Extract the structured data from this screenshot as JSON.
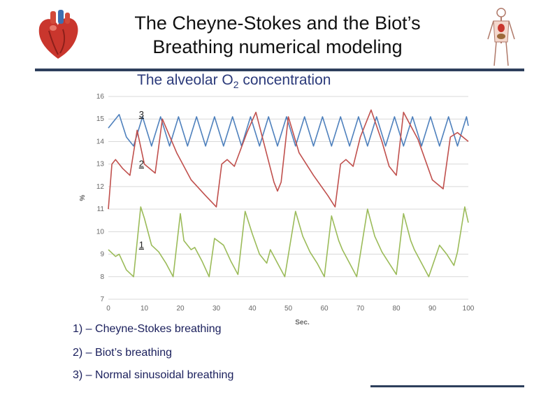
{
  "slide": {
    "title_line1": "The Cheyne-Stokes and the Biot’s",
    "title_line2": "Breathing numerical modeling",
    "subtitle_main": "The alveolar O",
    "subtitle_sub": "2",
    "subtitle_tail": " concentration"
  },
  "legend": [
    "1) – Cheyne-Stokes breathing",
    "2) – Biot’s breathing",
    "3) – Normal sinusoidal breathing"
  ],
  "icons": [
    "heart-icon",
    "human-anatomy-icon"
  ],
  "colors": {
    "rule": "#2e3f5c",
    "series_3": "#4f81bd",
    "series_2": "#c0504d",
    "series_1": "#9bbb59"
  },
  "chart_data": {
    "type": "line",
    "xlabel": "Sec.",
    "ylabel": "%",
    "xlim": [
      0,
      100
    ],
    "ylim": [
      7,
      16
    ],
    "x_ticks": [
      0,
      10,
      20,
      30,
      40,
      50,
      60,
      70,
      80,
      90,
      100
    ],
    "y_ticks": [
      7,
      8,
      9,
      10,
      11,
      12,
      13,
      14,
      15,
      16
    ],
    "grid": "horizontal",
    "series": [
      {
        "name": "3",
        "color": "#4f81bd",
        "x": [
          0,
          3,
          5,
          7,
          9.5,
          12,
          14.5,
          17,
          19.5,
          22,
          24.5,
          27,
          29.5,
          32,
          34.5,
          37,
          39.5,
          42,
          44.5,
          47,
          49.5,
          52,
          54.5,
          57,
          59.5,
          62,
          64.5,
          67,
          69.5,
          72,
          74.5,
          77,
          79.5,
          82,
          84.5,
          87,
          89.5,
          92,
          94.5,
          97,
          99.5,
          100
        ],
        "y": [
          14.6,
          15.2,
          14.2,
          13.8,
          15.1,
          13.8,
          15.1,
          13.8,
          15.1,
          13.8,
          15.1,
          13.8,
          15.1,
          13.8,
          15.1,
          13.8,
          15.1,
          13.8,
          15.1,
          13.8,
          15.1,
          13.8,
          15.1,
          13.8,
          15.1,
          13.8,
          15.1,
          13.8,
          15.1,
          13.8,
          15.1,
          13.8,
          15.1,
          13.8,
          15.1,
          13.8,
          15.1,
          13.8,
          15.1,
          13.8,
          15.1,
          14.7
        ]
      },
      {
        "name": "2",
        "color": "#c0504d",
        "x": [
          0,
          1,
          2,
          4,
          6,
          8,
          10,
          13,
          15,
          19,
          23,
          27,
          30,
          31.5,
          33,
          35,
          38.5,
          41,
          46,
          47,
          48,
          50,
          53,
          57,
          61,
          63,
          64.5,
          66,
          68,
          70,
          73,
          76,
          78,
          80,
          82,
          86,
          90,
          93,
          95,
          97,
          100
        ],
        "y": [
          11.0,
          13.0,
          13.2,
          12.8,
          12.5,
          14.5,
          13.0,
          12.6,
          15.0,
          13.5,
          12.3,
          11.6,
          11.1,
          13.0,
          13.2,
          12.9,
          14.4,
          15.3,
          12.2,
          11.8,
          12.2,
          15.1,
          13.5,
          12.5,
          11.6,
          11.1,
          13.0,
          13.2,
          12.9,
          14.2,
          15.4,
          14.0,
          12.9,
          12.5,
          15.3,
          14.1,
          12.3,
          11.9,
          14.2,
          14.4,
          14.0
        ]
      },
      {
        "name": "1",
        "color": "#9bbb59",
        "x": [
          0,
          2,
          3,
          5,
          7,
          9,
          10,
          12,
          14,
          16,
          18,
          20,
          21,
          23,
          24,
          26,
          28,
          29.5,
          32,
          34,
          36,
          38,
          40,
          42,
          44,
          45,
          47,
          49,
          52,
          54,
          56,
          58,
          60,
          62,
          64,
          65,
          67,
          69,
          72,
          74,
          76,
          78,
          80,
          82,
          84,
          85,
          87,
          89,
          92,
          94,
          96,
          97,
          99,
          100
        ],
        "y": [
          9.2,
          8.9,
          9.0,
          8.3,
          8.0,
          11.1,
          10.6,
          9.4,
          9.1,
          8.6,
          8.0,
          10.8,
          9.6,
          9.2,
          9.3,
          8.7,
          8.0,
          9.7,
          9.4,
          8.7,
          8.1,
          10.9,
          9.9,
          9.0,
          8.6,
          9.2,
          8.6,
          8.0,
          10.9,
          9.8,
          9.1,
          8.6,
          8.0,
          10.7,
          9.6,
          9.2,
          8.6,
          8.0,
          11.0,
          9.8,
          9.1,
          8.6,
          8.1,
          10.8,
          9.6,
          9.2,
          8.6,
          8.0,
          9.4,
          9.0,
          8.5,
          9.1,
          11.1,
          10.4
        ]
      }
    ],
    "curve_labels": [
      {
        "text": "3",
        "x": 5,
        "y": 15.2
      },
      {
        "text": "2",
        "x": 5,
        "y": 13.0
      },
      {
        "text": "1",
        "x": 5,
        "y": 9.4
      }
    ]
  }
}
